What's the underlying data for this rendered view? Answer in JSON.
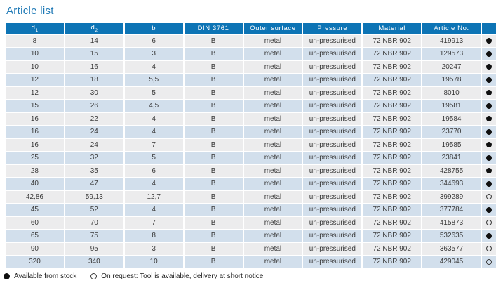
{
  "page": {
    "title": "Article list"
  },
  "colors": {
    "header_bg": "#0d74b5",
    "title": "#1e79b6",
    "row_odd": "#ececed",
    "row_even": "#d2dfec"
  },
  "table": {
    "columns": [
      {
        "key": "d1",
        "label": "d",
        "sub": "1"
      },
      {
        "key": "d2",
        "label": "d",
        "sub": "2"
      },
      {
        "key": "b",
        "label": "b"
      },
      {
        "key": "din",
        "label": "DIN 3761"
      },
      {
        "key": "outer",
        "label": "Outer surface"
      },
      {
        "key": "pressure",
        "label": "Pressure"
      },
      {
        "key": "material",
        "label": "Material"
      },
      {
        "key": "article",
        "label": "Article No."
      },
      {
        "key": "stock",
        "label": ""
      }
    ],
    "rows": [
      {
        "d1": "8",
        "d2": "14",
        "b": "6",
        "din": "B",
        "outer": "metal",
        "pressure": "un-pressurised",
        "material": "72 NBR 902",
        "article": "419913",
        "stock": "filled"
      },
      {
        "d1": "10",
        "d2": "15",
        "b": "3",
        "din": "B",
        "outer": "metal",
        "pressure": "un-pressurised",
        "material": "72 NBR 902",
        "article": "129573",
        "stock": "filled"
      },
      {
        "d1": "10",
        "d2": "16",
        "b": "4",
        "din": "B",
        "outer": "metal",
        "pressure": "un-pressurised",
        "material": "72 NBR 902",
        "article": "20247",
        "stock": "filled"
      },
      {
        "d1": "12",
        "d2": "18",
        "b": "5,5",
        "din": "B",
        "outer": "metal",
        "pressure": "un-pressurised",
        "material": "72 NBR 902",
        "article": "19578",
        "stock": "filled"
      },
      {
        "d1": "12",
        "d2": "30",
        "b": "5",
        "din": "B",
        "outer": "metal",
        "pressure": "un-pressurised",
        "material": "72 NBR 902",
        "article": "8010",
        "stock": "filled"
      },
      {
        "d1": "15",
        "d2": "26",
        "b": "4,5",
        "din": "B",
        "outer": "metal",
        "pressure": "un-pressurised",
        "material": "72 NBR 902",
        "article": "19581",
        "stock": "filled"
      },
      {
        "d1": "16",
        "d2": "22",
        "b": "4",
        "din": "B",
        "outer": "metal",
        "pressure": "un-pressurised",
        "material": "72 NBR 902",
        "article": "19584",
        "stock": "filled"
      },
      {
        "d1": "16",
        "d2": "24",
        "b": "4",
        "din": "B",
        "outer": "metal",
        "pressure": "un-pressurised",
        "material": "72 NBR 902",
        "article": "23770",
        "stock": "filled"
      },
      {
        "d1": "16",
        "d2": "24",
        "b": "7",
        "din": "B",
        "outer": "metal",
        "pressure": "un-pressurised",
        "material": "72 NBR 902",
        "article": "19585",
        "stock": "filled"
      },
      {
        "d1": "25",
        "d2": "32",
        "b": "5",
        "din": "B",
        "outer": "metal",
        "pressure": "un-pressurised",
        "material": "72 NBR 902",
        "article": "23841",
        "stock": "filled"
      },
      {
        "d1": "28",
        "d2": "35",
        "b": "6",
        "din": "B",
        "outer": "metal",
        "pressure": "un-pressurised",
        "material": "72 NBR 902",
        "article": "428755",
        "stock": "filled"
      },
      {
        "d1": "40",
        "d2": "47",
        "b": "4",
        "din": "B",
        "outer": "metal",
        "pressure": "un-pressurised",
        "material": "72 NBR 902",
        "article": "344693",
        "stock": "filled"
      },
      {
        "d1": "42,86",
        "d2": "59,13",
        "b": "12,7",
        "din": "B",
        "outer": "metal",
        "pressure": "un-pressurised",
        "material": "72 NBR 902",
        "article": "399289",
        "stock": "open"
      },
      {
        "d1": "45",
        "d2": "52",
        "b": "4",
        "din": "B",
        "outer": "metal",
        "pressure": "un-pressurised",
        "material": "72 NBR 902",
        "article": "377784",
        "stock": "filled"
      },
      {
        "d1": "60",
        "d2": "70",
        "b": "7",
        "din": "B",
        "outer": "metal",
        "pressure": "un-pressurised",
        "material": "72 NBR 902",
        "article": "415873",
        "stock": "open"
      },
      {
        "d1": "65",
        "d2": "75",
        "b": "8",
        "din": "B",
        "outer": "metal",
        "pressure": "un-pressurised",
        "material": "72 NBR 902",
        "article": "532635",
        "stock": "filled"
      },
      {
        "d1": "90",
        "d2": "95",
        "b": "3",
        "din": "B",
        "outer": "metal",
        "pressure": "un-pressurised",
        "material": "72 NBR 902",
        "article": "363577",
        "stock": "open"
      },
      {
        "d1": "320",
        "d2": "340",
        "b": "10",
        "din": "B",
        "outer": "metal",
        "pressure": "un-pressurised",
        "material": "72 NBR 902",
        "article": "429045",
        "stock": "open"
      }
    ]
  },
  "legend": {
    "available": "Available from stock",
    "on_request": "On request: Tool is available, delivery at short notice"
  }
}
